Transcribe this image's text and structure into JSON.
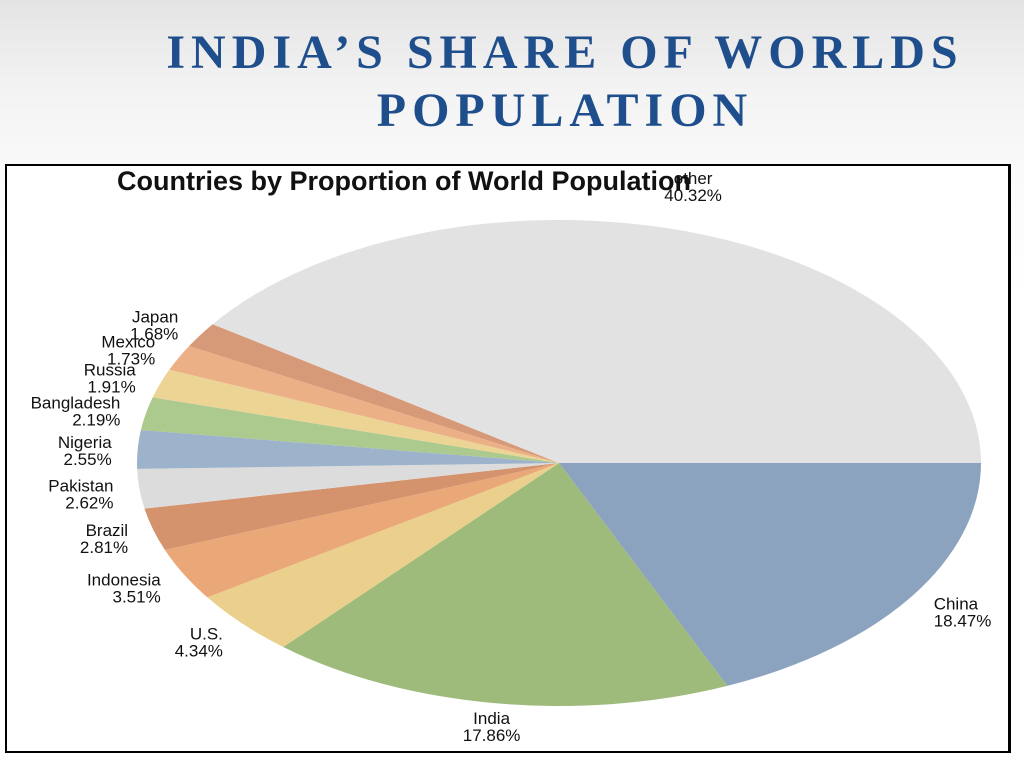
{
  "slide": {
    "title_line1": "INDIA’S SHARE OF WORLDS",
    "title_line2": "POPULATION"
  },
  "chart_data": {
    "type": "pie",
    "title": "Countries by Proportion of World Population",
    "start": "3 o'clock",
    "direction": "clockwise",
    "slices": [
      {
        "label": "China",
        "value": 18.47,
        "text": "18.47%",
        "color": "#8ba3bf"
      },
      {
        "label": "India",
        "value": 17.86,
        "text": "17.86%",
        "color": "#9fbb7c"
      },
      {
        "label": "U.S.",
        "value": 4.34,
        "text": "4.34%",
        "color": "#ebd08d"
      },
      {
        "label": "Indonesia",
        "value": 3.51,
        "text": "3.51%",
        "color": "#eaa878"
      },
      {
        "label": "Brazil",
        "value": 2.81,
        "text": "2.81%",
        "color": "#d4926d"
      },
      {
        "label": "Pakistan",
        "value": 2.62,
        "text": "2.62%",
        "color": "#dcdcdc"
      },
      {
        "label": "Nigeria",
        "value": 2.55,
        "text": "2.55%",
        "color": "#9db3cb"
      },
      {
        "label": "Bangladesh",
        "value": 2.19,
        "text": "2.19%",
        "color": "#acc98e"
      },
      {
        "label": "Russia",
        "value": 1.91,
        "text": "1.91%",
        "color": "#ecd494"
      },
      {
        "label": "Mexico",
        "value": 1.73,
        "text": "1.73%",
        "color": "#ebb086"
      },
      {
        "label": "Japan",
        "value": 1.68,
        "text": "1.68%",
        "color": "#d79a78"
      },
      {
        "label": "other",
        "value": 40.32,
        "text": "40.32%",
        "color": "#e2e2e2"
      }
    ]
  }
}
